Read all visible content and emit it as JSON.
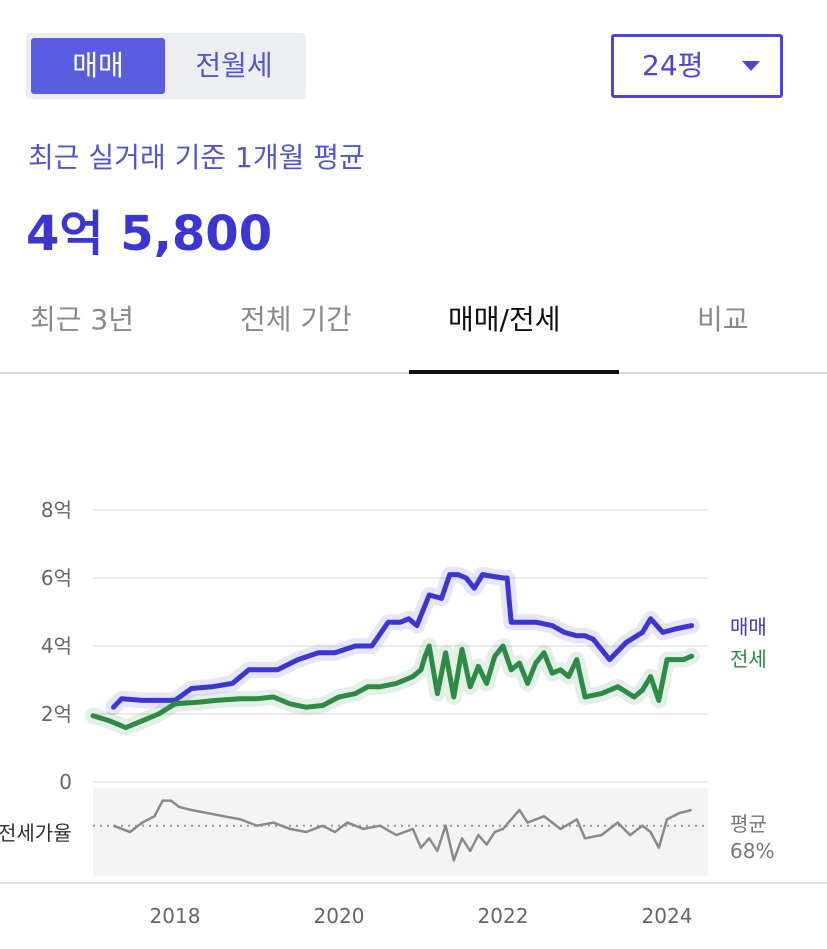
{
  "toggle": {
    "active": "매매",
    "inactive": "전월세"
  },
  "size_select": {
    "value": "24평"
  },
  "summary": {
    "subtitle": "최근 실거래 기준 1개월 평균",
    "price": "4억 5,800"
  },
  "tabs": [
    {
      "label": "최근 3년",
      "active": false
    },
    {
      "label": "전체 기간",
      "active": false
    },
    {
      "label": "매매/전세",
      "active": true
    },
    {
      "label": "비교",
      "active": false
    }
  ],
  "colors": {
    "sale": "#3b36d2",
    "jeonse": "#2e8b46",
    "ratio": "#8a8a8a",
    "grid": "#e6e6e6",
    "axis_text": "#666666"
  },
  "chart_data": {
    "type": "line",
    "title": "",
    "xlabel": "",
    "ylabel": "",
    "xlim": [
      2017.0,
      2024.5
    ],
    "ylim": [
      0,
      8
    ],
    "y_ticks": [
      0,
      2,
      4,
      6,
      8
    ],
    "y_tick_labels": [
      "0",
      "2억",
      "4억",
      "6억",
      "8억"
    ],
    "x_ticks": [
      2018,
      2020,
      2022,
      2024
    ],
    "x_tick_labels": [
      "2018",
      "2020",
      "2022",
      "2024"
    ],
    "grid": true,
    "series": [
      {
        "name": "매매",
        "color": "#3b36d2",
        "x": [
          2017.25,
          2017.35,
          2017.6,
          2017.85,
          2018.0,
          2018.2,
          2018.45,
          2018.7,
          2018.9,
          2019.05,
          2019.25,
          2019.5,
          2019.75,
          2019.95,
          2020.2,
          2020.4,
          2020.6,
          2020.75,
          2020.85,
          2020.95,
          2021.1,
          2021.25,
          2021.35,
          2021.45,
          2021.55,
          2021.65,
          2021.75,
          2022.0,
          2022.05,
          2022.1,
          2022.4,
          2022.6,
          2022.75,
          2022.9,
          2023.0,
          2023.1,
          2023.3,
          2023.5,
          2023.7,
          2023.8,
          2023.95,
          2024.1,
          2024.3
        ],
        "values": [
          2.2,
          2.45,
          2.4,
          2.4,
          2.4,
          2.75,
          2.8,
          2.9,
          3.3,
          3.3,
          3.3,
          3.6,
          3.8,
          3.8,
          4.0,
          4.0,
          4.7,
          4.7,
          4.8,
          4.6,
          5.5,
          5.4,
          6.1,
          6.1,
          6.0,
          5.7,
          6.1,
          6.0,
          6.0,
          4.7,
          4.7,
          4.6,
          4.4,
          4.3,
          4.3,
          4.2,
          3.6,
          4.1,
          4.4,
          4.8,
          4.4,
          4.5,
          4.6
        ]
      },
      {
        "name": "전세",
        "color": "#2e8b46",
        "x": [
          2017.0,
          2017.2,
          2017.4,
          2017.6,
          2017.8,
          2018.0,
          2018.3,
          2018.5,
          2018.8,
          2019.0,
          2019.2,
          2019.4,
          2019.6,
          2019.8,
          2020.0,
          2020.2,
          2020.35,
          2020.5,
          2020.7,
          2020.9,
          2021.0,
          2021.05,
          2021.1,
          2021.2,
          2021.3,
          2021.4,
          2021.5,
          2021.6,
          2021.7,
          2021.8,
          2021.9,
          2022.0,
          2022.1,
          2022.2,
          2022.3,
          2022.4,
          2022.5,
          2022.6,
          2022.7,
          2022.8,
          2022.9,
          2023.0,
          2023.2,
          2023.4,
          2023.6,
          2023.7,
          2023.8,
          2023.9,
          2024.0,
          2024.2,
          2024.3
        ],
        "values": [
          1.95,
          1.8,
          1.6,
          1.8,
          2.0,
          2.3,
          2.35,
          2.4,
          2.45,
          2.45,
          2.5,
          2.3,
          2.2,
          2.25,
          2.5,
          2.6,
          2.8,
          2.8,
          2.9,
          3.1,
          3.3,
          3.7,
          4.0,
          2.6,
          3.8,
          2.5,
          3.9,
          2.8,
          3.4,
          2.9,
          3.7,
          4.0,
          3.3,
          3.5,
          2.9,
          3.5,
          3.8,
          3.2,
          3.3,
          3.1,
          3.6,
          2.5,
          2.6,
          2.8,
          2.5,
          2.7,
          3.1,
          2.4,
          3.6,
          3.6,
          3.7
        ]
      }
    ],
    "ratio_panel": {
      "label": "전세가율",
      "avg_label": "평균",
      "avg_value": "68%",
      "avg": 68,
      "ylim": [
        52,
        80
      ],
      "x": [
        2017.25,
        2017.45,
        2017.6,
        2017.75,
        2017.85,
        2017.95,
        2018.05,
        2018.2,
        2018.4,
        2018.6,
        2018.8,
        2019.0,
        2019.2,
        2019.4,
        2019.6,
        2019.8,
        2019.95,
        2020.1,
        2020.3,
        2020.5,
        2020.7,
        2020.9,
        2021.0,
        2021.1,
        2021.2,
        2021.3,
        2021.4,
        2021.5,
        2021.6,
        2021.7,
        2021.8,
        2021.9,
        2022.0,
        2022.2,
        2022.3,
        2022.5,
        2022.7,
        2022.9,
        2023.0,
        2023.2,
        2023.4,
        2023.55,
        2023.7,
        2023.8,
        2023.9,
        2024.0,
        2024.15,
        2024.3
      ],
      "values": [
        68,
        66,
        69,
        71,
        76,
        76,
        74,
        73,
        72,
        71,
        70,
        68,
        69,
        67,
        66,
        68,
        66,
        69,
        67,
        68,
        65,
        67,
        61,
        64,
        60,
        68,
        57,
        64,
        60,
        65,
        62,
        66,
        67,
        73,
        69,
        71,
        67,
        70,
        64,
        65,
        69,
        65,
        68,
        66,
        61,
        70,
        72,
        73
      ]
    }
  }
}
